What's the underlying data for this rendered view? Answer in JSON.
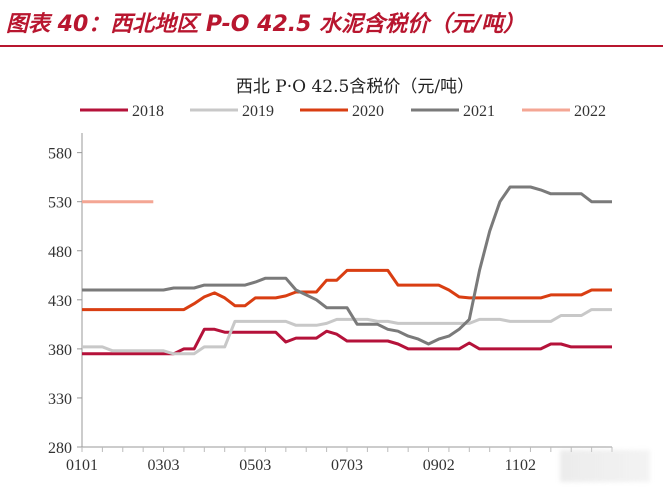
{
  "figure": {
    "title": "图表 40：西北地区 P-O 42.5 水泥含税价（元/吨）"
  },
  "chart_data": {
    "type": "line",
    "title": "西北 P·O 42.5含税价（元/吨）",
    "xlabel": "",
    "ylabel": "",
    "ylim": [
      280,
      600
    ],
    "yticks": [
      280,
      330,
      380,
      430,
      480,
      530,
      580
    ],
    "xlim_week": [
      1,
      53
    ],
    "xticks": [
      {
        "label": "0101",
        "week": 1
      },
      {
        "label": "0303",
        "week": 9
      },
      {
        "label": "0503",
        "week": 18
      },
      {
        "label": "0703",
        "week": 27
      },
      {
        "label": "0902",
        "week": 36
      },
      {
        "label": "1102",
        "week": 44
      }
    ],
    "grid": false,
    "legend": "top",
    "series": [
      {
        "name": "2018",
        "color": "#b5123a",
        "points": [
          [
            1,
            375
          ],
          [
            2,
            375
          ],
          [
            3,
            375
          ],
          [
            4,
            375
          ],
          [
            5,
            375
          ],
          [
            6,
            375
          ],
          [
            7,
            375
          ],
          [
            8,
            375
          ],
          [
            9,
            375
          ],
          [
            10,
            375
          ],
          [
            11,
            380
          ],
          [
            12,
            380
          ],
          [
            13,
            400
          ],
          [
            14,
            400
          ],
          [
            15,
            397
          ],
          [
            16,
            397
          ],
          [
            17,
            397
          ],
          [
            18,
            397
          ],
          [
            19,
            397
          ],
          [
            20,
            397
          ],
          [
            21,
            387
          ],
          [
            22,
            391
          ],
          [
            23,
            391
          ],
          [
            24,
            391
          ],
          [
            25,
            398
          ],
          [
            26,
            395
          ],
          [
            27,
            388
          ],
          [
            28,
            388
          ],
          [
            29,
            388
          ],
          [
            30,
            388
          ],
          [
            31,
            388
          ],
          [
            32,
            385
          ],
          [
            33,
            380
          ],
          [
            34,
            380
          ],
          [
            35,
            380
          ],
          [
            36,
            380
          ],
          [
            37,
            380
          ],
          [
            38,
            380
          ],
          [
            39,
            386
          ],
          [
            40,
            380
          ],
          [
            41,
            380
          ],
          [
            42,
            380
          ],
          [
            43,
            380
          ],
          [
            44,
            380
          ],
          [
            45,
            380
          ],
          [
            46,
            380
          ],
          [
            47,
            385
          ],
          [
            48,
            385
          ],
          [
            49,
            382
          ],
          [
            50,
            382
          ],
          [
            51,
            382
          ],
          [
            52,
            382
          ],
          [
            53,
            382
          ]
        ]
      },
      {
        "name": "2019",
        "color": "#c8c8c8",
        "points": [
          [
            1,
            382
          ],
          [
            2,
            382
          ],
          [
            3,
            382
          ],
          [
            4,
            378
          ],
          [
            5,
            378
          ],
          [
            6,
            378
          ],
          [
            7,
            378
          ],
          [
            8,
            378
          ],
          [
            9,
            378
          ],
          [
            10,
            375
          ],
          [
            11,
            375
          ],
          [
            12,
            375
          ],
          [
            13,
            382
          ],
          [
            14,
            382
          ],
          [
            15,
            382
          ],
          [
            16,
            408
          ],
          [
            17,
            408
          ],
          [
            18,
            408
          ],
          [
            19,
            408
          ],
          [
            20,
            408
          ],
          [
            21,
            408
          ],
          [
            22,
            404
          ],
          [
            23,
            404
          ],
          [
            24,
            404
          ],
          [
            25,
            406
          ],
          [
            26,
            410
          ],
          [
            27,
            410
          ],
          [
            28,
            410
          ],
          [
            29,
            410
          ],
          [
            30,
            408
          ],
          [
            31,
            408
          ],
          [
            32,
            406
          ],
          [
            33,
            406
          ],
          [
            34,
            406
          ],
          [
            35,
            406
          ],
          [
            36,
            406
          ],
          [
            37,
            406
          ],
          [
            38,
            406
          ],
          [
            39,
            406
          ],
          [
            40,
            410
          ],
          [
            41,
            410
          ],
          [
            42,
            410
          ],
          [
            43,
            408
          ],
          [
            44,
            408
          ],
          [
            45,
            408
          ],
          [
            46,
            408
          ],
          [
            47,
            408
          ],
          [
            48,
            414
          ],
          [
            49,
            414
          ],
          [
            50,
            414
          ],
          [
            51,
            420
          ],
          [
            52,
            420
          ],
          [
            53,
            420
          ]
        ]
      },
      {
        "name": "2020",
        "color": "#d93e12",
        "points": [
          [
            1,
            420
          ],
          [
            2,
            420
          ],
          [
            3,
            420
          ],
          [
            4,
            420
          ],
          [
            5,
            420
          ],
          [
            6,
            420
          ],
          [
            7,
            420
          ],
          [
            8,
            420
          ],
          [
            9,
            420
          ],
          [
            10,
            420
          ],
          [
            11,
            420
          ],
          [
            12,
            426
          ],
          [
            13,
            433
          ],
          [
            14,
            437
          ],
          [
            15,
            432
          ],
          [
            16,
            424
          ],
          [
            17,
            424
          ],
          [
            18,
            432
          ],
          [
            19,
            432
          ],
          [
            20,
            432
          ],
          [
            21,
            434
          ],
          [
            22,
            438
          ],
          [
            23,
            438
          ],
          [
            24,
            438
          ],
          [
            25,
            450
          ],
          [
            26,
            450
          ],
          [
            27,
            460
          ],
          [
            28,
            460
          ],
          [
            29,
            460
          ],
          [
            30,
            460
          ],
          [
            31,
            460
          ],
          [
            32,
            445
          ],
          [
            33,
            445
          ],
          [
            34,
            445
          ],
          [
            35,
            445
          ],
          [
            36,
            445
          ],
          [
            37,
            440
          ],
          [
            38,
            433
          ],
          [
            39,
            432
          ],
          [
            40,
            432
          ],
          [
            41,
            432
          ],
          [
            42,
            432
          ],
          [
            43,
            432
          ],
          [
            44,
            432
          ],
          [
            45,
            432
          ],
          [
            46,
            432
          ],
          [
            47,
            435
          ],
          [
            48,
            435
          ],
          [
            49,
            435
          ],
          [
            50,
            435
          ],
          [
            51,
            440
          ],
          [
            52,
            440
          ],
          [
            53,
            440
          ]
        ]
      },
      {
        "name": "2021",
        "color": "#7a7a7a",
        "points": [
          [
            1,
            440
          ],
          [
            2,
            440
          ],
          [
            3,
            440
          ],
          [
            4,
            440
          ],
          [
            5,
            440
          ],
          [
            6,
            440
          ],
          [
            7,
            440
          ],
          [
            8,
            440
          ],
          [
            9,
            440
          ],
          [
            10,
            442
          ],
          [
            11,
            442
          ],
          [
            12,
            442
          ],
          [
            13,
            445
          ],
          [
            14,
            445
          ],
          [
            15,
            445
          ],
          [
            16,
            445
          ],
          [
            17,
            445
          ],
          [
            18,
            448
          ],
          [
            19,
            452
          ],
          [
            20,
            452
          ],
          [
            21,
            452
          ],
          [
            22,
            440
          ],
          [
            23,
            435
          ],
          [
            24,
            430
          ],
          [
            25,
            422
          ],
          [
            26,
            422
          ],
          [
            27,
            422
          ],
          [
            28,
            405
          ],
          [
            29,
            405
          ],
          [
            30,
            405
          ],
          [
            31,
            400
          ],
          [
            32,
            398
          ],
          [
            33,
            393
          ],
          [
            34,
            390
          ],
          [
            35,
            385
          ],
          [
            36,
            390
          ],
          [
            37,
            393
          ],
          [
            38,
            400
          ],
          [
            39,
            410
          ],
          [
            40,
            460
          ],
          [
            41,
            500
          ],
          [
            42,
            530
          ],
          [
            43,
            545
          ],
          [
            44,
            545
          ],
          [
            45,
            545
          ],
          [
            46,
            542
          ],
          [
            47,
            538
          ],
          [
            48,
            538
          ],
          [
            49,
            538
          ],
          [
            50,
            538
          ],
          [
            51,
            530
          ],
          [
            52,
            530
          ],
          [
            53,
            530
          ]
        ]
      },
      {
        "name": "2022",
        "color": "#f4a694",
        "points": [
          [
            1,
            530
          ],
          [
            2,
            530
          ],
          [
            3,
            530
          ],
          [
            4,
            530
          ],
          [
            5,
            530
          ],
          [
            6,
            530
          ],
          [
            7,
            530
          ],
          [
            8,
            530
          ]
        ]
      }
    ]
  }
}
